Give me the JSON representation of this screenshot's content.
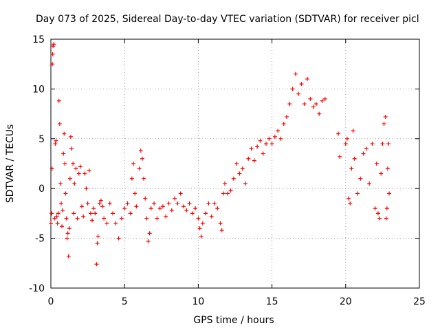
{
  "chart_data": {
    "type": "scatter",
    "title": "Day 073 of 2025, Sidereal Day-to-day VTEC variation (SDTVAR) for receiver picl",
    "xlabel": "GPS time / hours",
    "ylabel": "SDTVAR / TECUs",
    "xlim": [
      0,
      25
    ],
    "ylim": [
      -10,
      15
    ],
    "xticks": [
      0,
      5,
      10,
      15,
      20,
      25
    ],
    "yticks": [
      -10,
      -5,
      0,
      5,
      10,
      15
    ],
    "grid": true,
    "marker": "+",
    "marker_color": "#ff0000",
    "series": [
      {
        "name": "SDTVAR",
        "points": [
          [
            0.0,
            -3.5
          ],
          [
            0.05,
            -2.5
          ],
          [
            0.08,
            2.0
          ],
          [
            0.1,
            12.5
          ],
          [
            0.12,
            13.5
          ],
          [
            0.15,
            14.3
          ],
          [
            0.2,
            14.5
          ],
          [
            0.25,
            -3.0
          ],
          [
            0.3,
            4.5
          ],
          [
            0.35,
            4.8
          ],
          [
            0.4,
            -2.8
          ],
          [
            0.45,
            -3.5
          ],
          [
            0.5,
            -2.5
          ],
          [
            0.55,
            8.8
          ],
          [
            0.6,
            6.5
          ],
          [
            0.65,
            0.5
          ],
          [
            0.7,
            -1.5
          ],
          [
            0.75,
            -3.8
          ],
          [
            0.8,
            -2.2
          ],
          [
            0.85,
            3.5
          ],
          [
            0.9,
            5.5
          ],
          [
            0.95,
            2.5
          ],
          [
            1.0,
            -0.5
          ],
          [
            1.05,
            -3.0
          ],
          [
            1.1,
            -5.0
          ],
          [
            1.15,
            -4.5
          ],
          [
            1.2,
            -6.8
          ],
          [
            1.25,
            -4.0
          ],
          [
            1.3,
            1.0
          ],
          [
            1.35,
            5.2
          ],
          [
            1.4,
            4.0
          ],
          [
            1.5,
            2.5
          ],
          [
            1.55,
            -2.5
          ],
          [
            1.6,
            0.5
          ],
          [
            1.7,
            2.0
          ],
          [
            1.8,
            -3.0
          ],
          [
            1.9,
            1.5
          ],
          [
            2.0,
            2.2
          ],
          [
            2.1,
            -1.8
          ],
          [
            2.2,
            -2.8
          ],
          [
            2.3,
            1.5
          ],
          [
            2.4,
            0.0
          ],
          [
            2.5,
            -1.5
          ],
          [
            2.6,
            1.8
          ],
          [
            2.7,
            -2.5
          ],
          [
            2.8,
            -3.2
          ],
          [
            2.9,
            -2.0
          ],
          [
            3.0,
            -2.5
          ],
          [
            3.1,
            -7.6
          ],
          [
            3.15,
            -5.5
          ],
          [
            3.2,
            -4.8
          ],
          [
            3.3,
            -1.5
          ],
          [
            3.4,
            -1.2
          ],
          [
            3.5,
            -1.8
          ],
          [
            3.6,
            -3.0
          ],
          [
            3.8,
            -3.5
          ],
          [
            4.0,
            -1.5
          ],
          [
            4.2,
            -2.5
          ],
          [
            4.4,
            -3.5
          ],
          [
            4.6,
            -5.0
          ],
          [
            4.8,
            -3.0
          ],
          [
            5.0,
            -2.0
          ],
          [
            5.2,
            -1.5
          ],
          [
            5.4,
            -2.5
          ],
          [
            5.5,
            1.0
          ],
          [
            5.6,
            2.5
          ],
          [
            5.7,
            -0.5
          ],
          [
            5.8,
            -1.8
          ],
          [
            6.0,
            2.0
          ],
          [
            6.1,
            3.8
          ],
          [
            6.2,
            3.0
          ],
          [
            6.3,
            1.0
          ],
          [
            6.4,
            -1.0
          ],
          [
            6.5,
            -3.0
          ],
          [
            6.6,
            -5.3
          ],
          [
            6.7,
            -4.5
          ],
          [
            6.8,
            -2.0
          ],
          [
            7.0,
            -1.5
          ],
          [
            7.2,
            -3.0
          ],
          [
            7.4,
            -2.0
          ],
          [
            7.6,
            -1.8
          ],
          [
            7.8,
            -2.8
          ],
          [
            8.0,
            -1.5
          ],
          [
            8.2,
            -2.2
          ],
          [
            8.4,
            -1.0
          ],
          [
            8.6,
            -1.5
          ],
          [
            8.8,
            -0.5
          ],
          [
            9.0,
            -1.8
          ],
          [
            9.2,
            -2.2
          ],
          [
            9.4,
            -1.5
          ],
          [
            9.6,
            -2.5
          ],
          [
            9.8,
            -2.0
          ],
          [
            10.0,
            -3.0
          ],
          [
            10.1,
            -4.0
          ],
          [
            10.2,
            -4.8
          ],
          [
            10.3,
            -3.5
          ],
          [
            10.5,
            -2.5
          ],
          [
            10.7,
            -1.5
          ],
          [
            10.9,
            -2.8
          ],
          [
            11.1,
            -1.5
          ],
          [
            11.3,
            -2.0
          ],
          [
            11.5,
            -3.5
          ],
          [
            11.6,
            -4.2
          ],
          [
            11.7,
            -0.5
          ],
          [
            11.8,
            0.5
          ],
          [
            12.0,
            -0.5
          ],
          [
            12.2,
            -0.2
          ],
          [
            12.4,
            1.0
          ],
          [
            12.6,
            2.5
          ],
          [
            12.8,
            1.5
          ],
          [
            13.0,
            2.0
          ],
          [
            13.2,
            0.5
          ],
          [
            13.4,
            3.0
          ],
          [
            13.6,
            4.0
          ],
          [
            13.8,
            2.8
          ],
          [
            14.0,
            4.2
          ],
          [
            14.2,
            4.8
          ],
          [
            14.4,
            3.5
          ],
          [
            14.6,
            4.5
          ],
          [
            14.8,
            5.0
          ],
          [
            15.0,
            4.5
          ],
          [
            15.2,
            5.2
          ],
          [
            15.4,
            5.8
          ],
          [
            15.6,
            5.0
          ],
          [
            15.8,
            6.5
          ],
          [
            16.0,
            7.2
          ],
          [
            16.2,
            8.5
          ],
          [
            16.4,
            10.0
          ],
          [
            16.6,
            11.5
          ],
          [
            16.8,
            9.5
          ],
          [
            17.0,
            10.5
          ],
          [
            17.2,
            8.5
          ],
          [
            17.4,
            11.0
          ],
          [
            17.6,
            9.0
          ],
          [
            17.8,
            8.2
          ],
          [
            18.0,
            8.5
          ],
          [
            18.2,
            7.5
          ],
          [
            18.4,
            8.8
          ],
          [
            18.6,
            9.0
          ],
          [
            19.5,
            5.5
          ],
          [
            19.6,
            3.2
          ],
          [
            20.0,
            4.5
          ],
          [
            20.1,
            5.0
          ],
          [
            20.2,
            -1.0
          ],
          [
            20.3,
            -1.5
          ],
          [
            20.4,
            2.0
          ],
          [
            20.5,
            5.8
          ],
          [
            20.6,
            3.0
          ],
          [
            20.8,
            -0.5
          ],
          [
            21.0,
            1.0
          ],
          [
            21.2,
            3.5
          ],
          [
            21.4,
            4.0
          ],
          [
            21.6,
            0.5
          ],
          [
            21.8,
            4.5
          ],
          [
            22.0,
            -2.0
          ],
          [
            22.1,
            2.5
          ],
          [
            22.2,
            -2.5
          ],
          [
            22.3,
            -3.0
          ],
          [
            22.4,
            1.5
          ],
          [
            22.5,
            4.5
          ],
          [
            22.6,
            6.5
          ],
          [
            22.7,
            7.2
          ],
          [
            22.75,
            -3.0
          ],
          [
            22.8,
            -2.0
          ],
          [
            22.85,
            2.0
          ],
          [
            22.9,
            4.5
          ],
          [
            22.95,
            -0.5
          ]
        ]
      }
    ]
  }
}
